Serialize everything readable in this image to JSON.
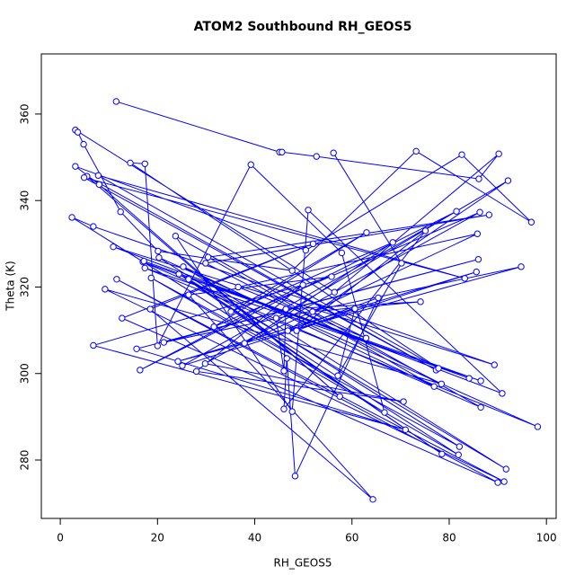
{
  "chart_data": {
    "type": "line",
    "markers": true,
    "title": "ATOM2 Southbound RH_GEOS5",
    "x_label": "RH_GEOS5",
    "y_label": "Theta (K)",
    "color": "#0000ff",
    "x": [
      11.5,
      45.1,
      45.6,
      52.7,
      86.1,
      90.2,
      56.4,
      3.1,
      3.6,
      4.8,
      12.4,
      20.1,
      47.7,
      73.2,
      96.9,
      82.6,
      50.5,
      3.1,
      8.0,
      57.5,
      5.5,
      77.3,
      4.9,
      83.2,
      7.8,
      77.8,
      14.4,
      17.4,
      20.0,
      39.2,
      57.9,
      66.7,
      2.4,
      6.8,
      89.3,
      10.9,
      90.9,
      51.0,
      47.7,
      23.7,
      86.5,
      17.0,
      84.1,
      17.2,
      86.5,
      17.4,
      98.2,
      20.3,
      82.1,
      18.7,
      81.9,
      24.4,
      78.5,
      26.4,
      91.7,
      25.3,
      76.9,
      30.4,
      88.2,
      29.9,
      78.4,
      9.2,
      91.3,
      11.6,
      90.0,
      12.7,
      52.0,
      18.5,
      64.3,
      26.4,
      55.8,
      6.8,
      71.0,
      15.7,
      86.0,
      21.3,
      94.8,
      24.2,
      85.6,
      25.1,
      81.5,
      16.4,
      49.9,
      28.0,
      70.6,
      29.8,
      86.3,
      31.6,
      63.0,
      35.1,
      68.4,
      37.9,
      85.8,
      36.6,
      62.9,
      51.9,
      74.1,
      46.4,
      46.0,
      44.4,
      92.1,
      46.8,
      65.4,
      48.3,
      46.6,
      46.0,
      75.1,
      48.6,
      60.6,
      57.1,
      70.2,
      56.2
    ],
    "values": [
      362.9,
      351.2,
      351.2,
      350.2,
      345,
      350.8,
      318.8,
      356.3,
      355.8,
      353,
      337.4,
      328.3,
      323.8,
      351.4,
      335,
      350.6,
      328.5,
      347.9,
      343.7,
      294.7,
      345.6,
      300.8,
      345.3,
      322.0,
      345.8,
      301.2,
      348.7,
      348.5,
      306.4,
      348.3,
      327.9,
      291,
      336.1,
      334,
      302.0,
      329.3,
      295.4,
      337.8,
      291.2,
      331.8,
      292.2,
      325.8,
      298.9,
      326.0,
      298.3,
      324.4,
      287.7,
      326.8,
      283.1,
      322.1,
      281.2,
      323.0,
      281.4,
      321.8,
      277.9,
      324.7,
      297,
      326.9,
      336.7,
      325.5,
      297.6,
      319.5,
      275,
      321.8,
      274.8,
      312.8,
      330,
      314.9,
      270.9,
      318.2,
      322.4,
      306.5,
      287,
      305.7,
      326.4,
      307.2,
      324.7,
      302.8,
      323.5,
      301.8,
      337.5,
      300.8,
      320.5,
      300.5,
      293.5,
      302.3,
      337.3,
      310.8,
      332.6,
      314.3,
      330.3,
      307.0,
      332.3,
      320.0,
      308.2,
      314.3,
      316.6,
      314.9,
      300.6,
      312.8,
      344.6,
      309.9,
      317.5,
      276.3,
      303.5,
      291.8,
      333.0,
      309.9,
      315.0,
      299.5,
      325.5,
      351
    ],
    "xlim": [
      -3.9,
      102.0
    ],
    "ylim": [
      266.5,
      373.9
    ],
    "xticks": [
      0,
      20,
      40,
      60,
      80,
      100
    ],
    "yticks": [
      280,
      300,
      320,
      340,
      360
    ]
  }
}
